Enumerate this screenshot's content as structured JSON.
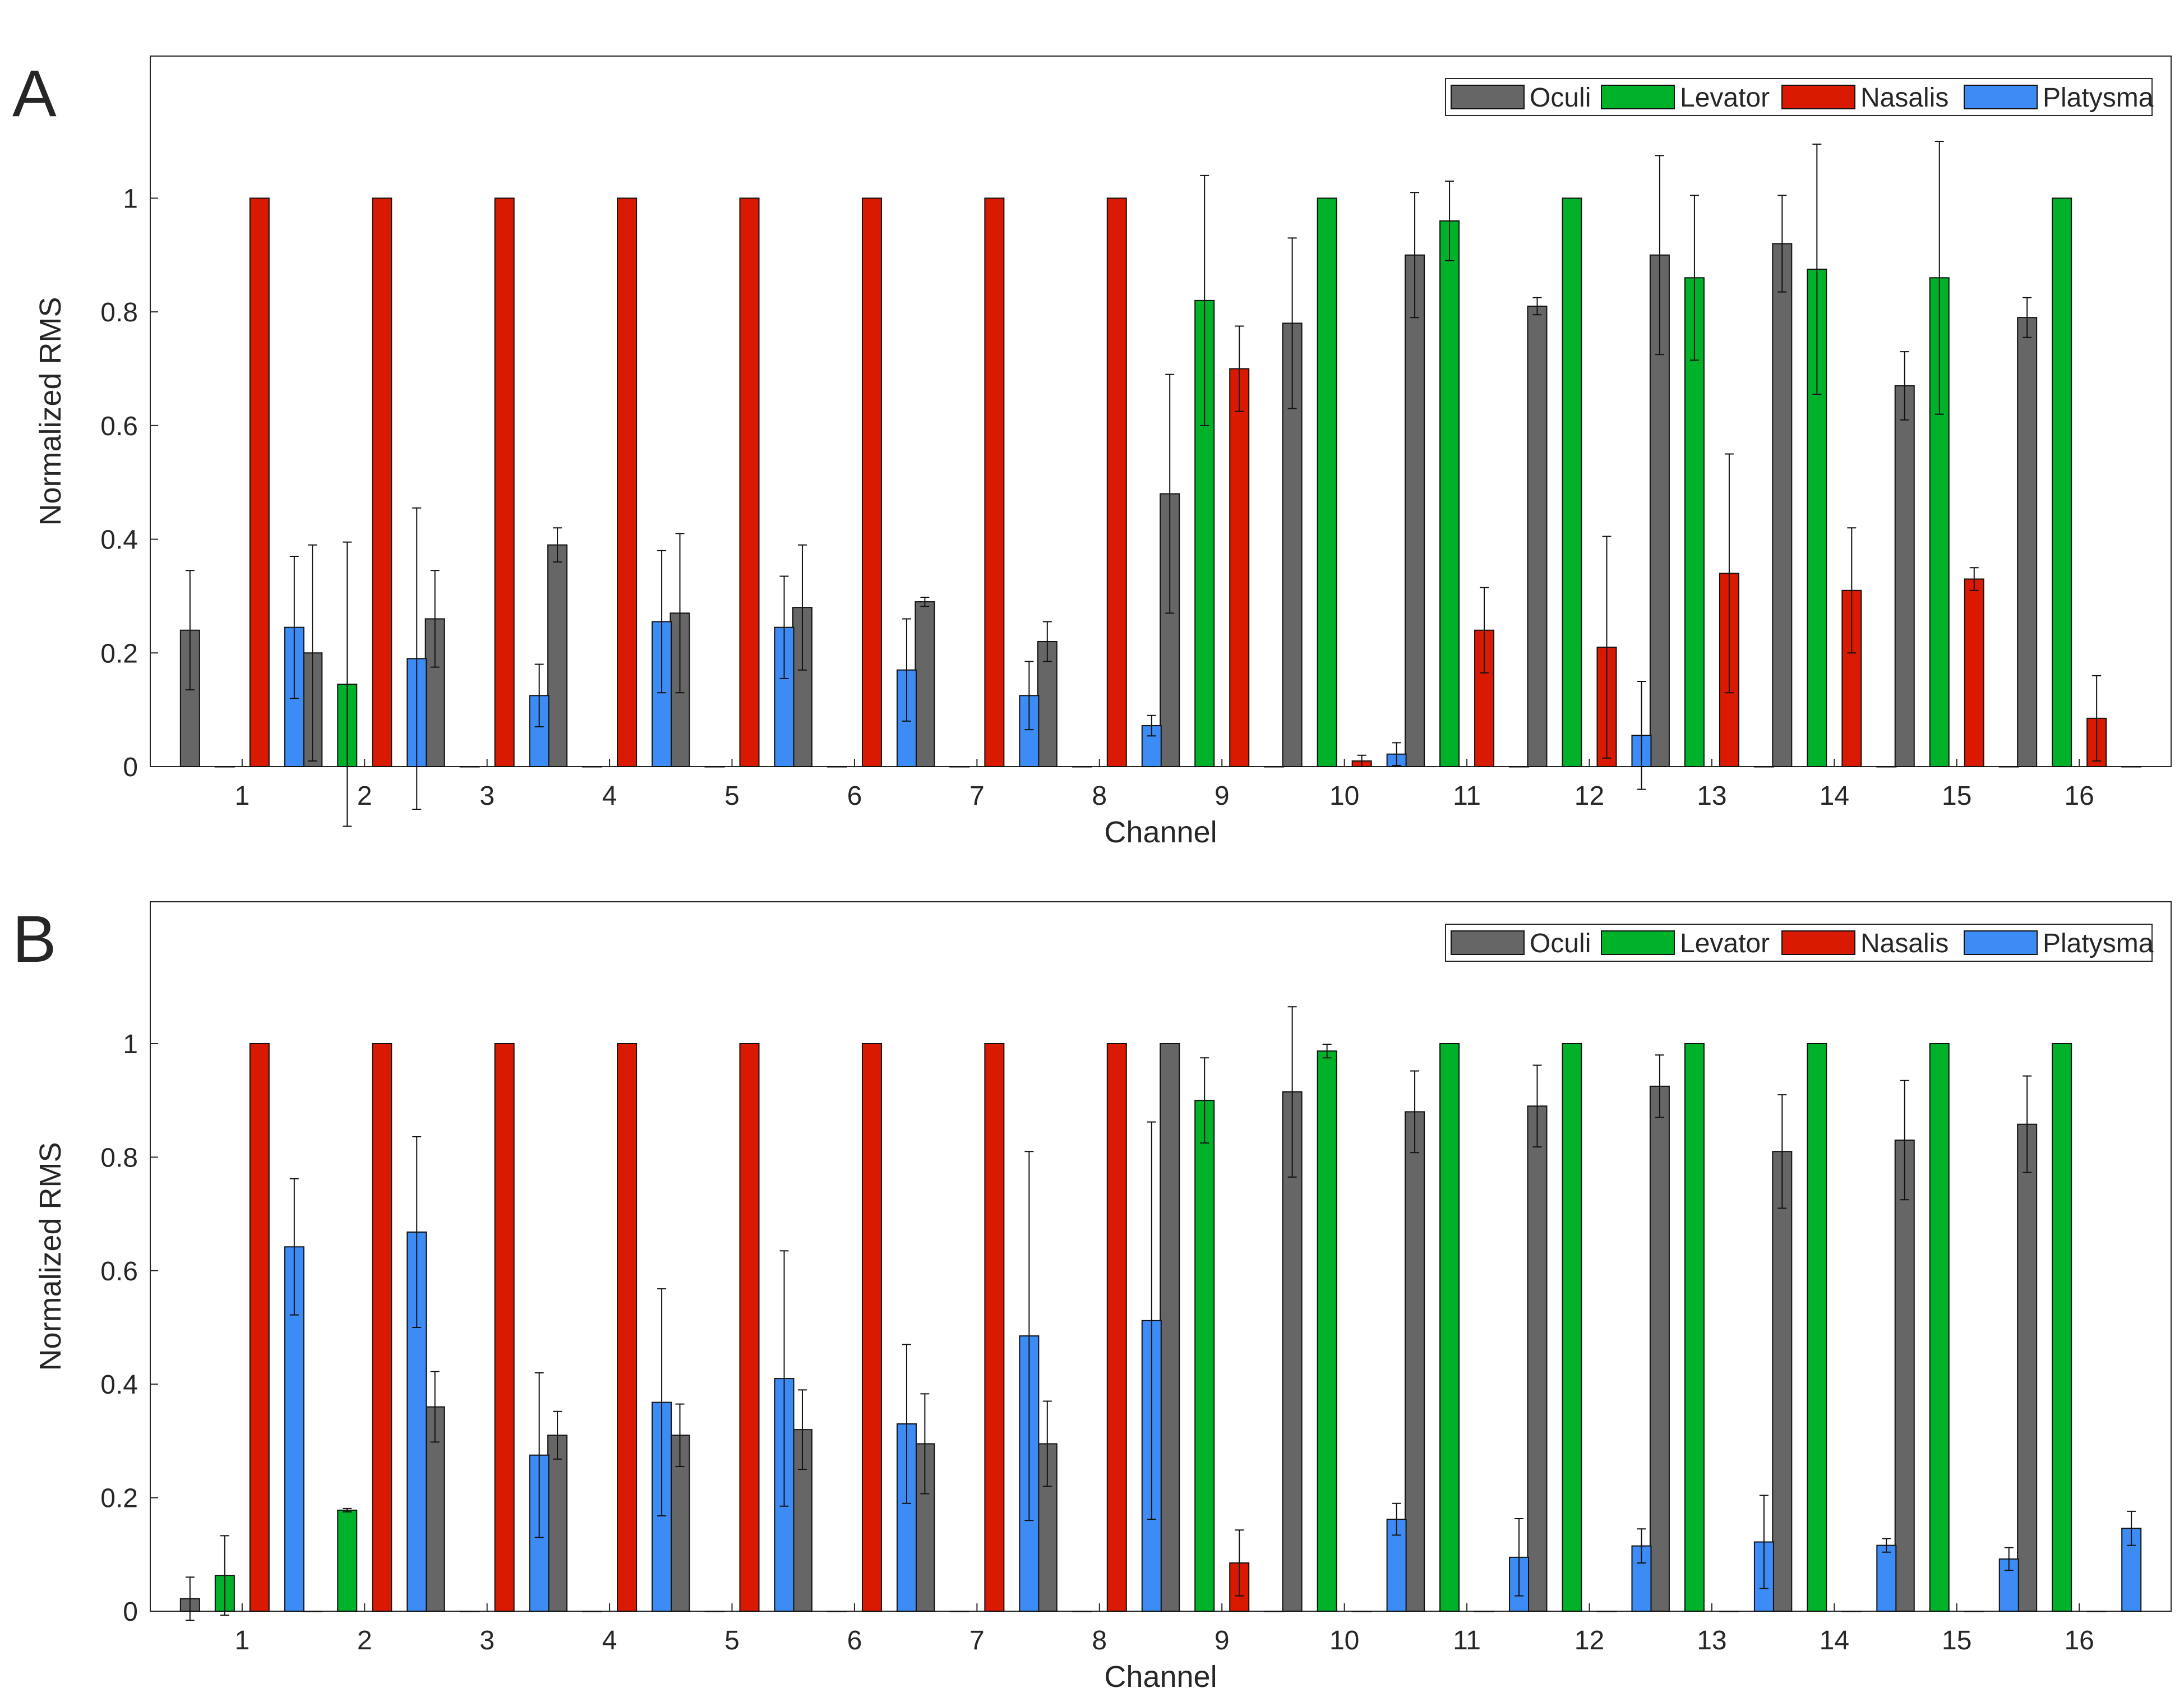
{
  "colors": {
    "Oculi": "#666666",
    "Levator": "#00b12a",
    "Nasalis": "#d91a00",
    "Platysma": "#3d8bf5"
  },
  "chart_data": [
    {
      "panel_label": "A",
      "type": "bar",
      "title": "",
      "xlabel": "Channel",
      "ylabel": "Normalized RMS",
      "ylim": [
        0,
        1.25
      ],
      "yticks": [
        "0",
        "0.2",
        "0.4",
        "0.6",
        "0.8",
        "1"
      ],
      "categories": [
        "1",
        "2",
        "3",
        "4",
        "5",
        "6",
        "7",
        "8",
        "9",
        "10",
        "11",
        "12",
        "13",
        "14",
        "15",
        "16"
      ],
      "legend_position": "top-right",
      "series": [
        {
          "name": "Oculi",
          "values": [
            0.24,
            0.2,
            0.26,
            0.39,
            0.27,
            0.28,
            0.29,
            0.22,
            0.48,
            0.78,
            0.9,
            0.81,
            0.9,
            0.92,
            0.67,
            0.79
          ],
          "errors": [
            0.105,
            0.19,
            0.085,
            0.03,
            0.14,
            0.11,
            0.008,
            0.035,
            0.21,
            0.15,
            0.11,
            0.015,
            0.175,
            0.085,
            0.06,
            0.035
          ]
        },
        {
          "name": "Levator",
          "values": [
            0,
            0.145,
            0,
            0,
            0,
            0,
            0,
            0,
            0.82,
            1,
            0.96,
            1,
            0.86,
            0.875,
            0.86,
            1
          ],
          "errors": [
            0,
            0.25,
            0,
            0,
            0,
            0,
            0,
            0,
            0.22,
            0,
            0.07,
            0,
            0.145,
            0.22,
            0.24,
            0
          ]
        },
        {
          "name": "Nasalis",
          "values": [
            1,
            1,
            1,
            1,
            1,
            1,
            1,
            1,
            0.7,
            0.01,
            0.24,
            0.21,
            0.34,
            0.31,
            0.33,
            0.085
          ],
          "errors": [
            0,
            0,
            0,
            0,
            0,
            0,
            0,
            0,
            0.075,
            0.01,
            0.075,
            0.195,
            0.21,
            0.11,
            0.02,
            0.075
          ]
        },
        {
          "name": "Platysma",
          "values": [
            0.245,
            0.19,
            0.125,
            0.255,
            0.245,
            0.17,
            0.125,
            0.072,
            0,
            0.022,
            0,
            0.055,
            0,
            0,
            0,
            0
          ],
          "errors": [
            0.125,
            0.265,
            0.055,
            0.125,
            0.09,
            0.09,
            0.06,
            0.018,
            0,
            0.02,
            0,
            0.095,
            0,
            0,
            0,
            0
          ]
        }
      ]
    },
    {
      "panel_label": "B",
      "type": "bar",
      "title": "",
      "xlabel": "Channel",
      "ylabel": "Normalized RMS",
      "ylim": [
        0,
        1.25
      ],
      "yticks": [
        "0",
        "0.2",
        "0.4",
        "0.6",
        "0.8",
        "1"
      ],
      "categories": [
        "1",
        "2",
        "3",
        "4",
        "5",
        "6",
        "7",
        "8",
        "9",
        "10",
        "11",
        "12",
        "13",
        "14",
        "15",
        "16"
      ],
      "legend_position": "top-right",
      "series": [
        {
          "name": "Oculi",
          "values": [
            0.022,
            0,
            0.36,
            0.31,
            0.31,
            0.32,
            0.295,
            0.295,
            1,
            0.915,
            0.88,
            0.89,
            0.925,
            0.81,
            0.83,
            0.858
          ],
          "errors": [
            0.038,
            0,
            0.062,
            0.042,
            0.055,
            0.07,
            0.088,
            0.075,
            0,
            0.15,
            0.072,
            0.072,
            0.055,
            0.1,
            0.105,
            0.085
          ]
        },
        {
          "name": "Levator",
          "values": [
            0.063,
            0.178,
            0,
            0,
            0,
            0,
            0,
            0,
            0.9,
            0.987,
            1,
            1,
            1,
            1,
            1,
            1
          ],
          "errors": [
            0.07,
            0.003,
            0,
            0,
            0,
            0,
            0,
            0,
            0.075,
            0.012,
            0,
            0,
            0,
            0,
            0,
            0
          ]
        },
        {
          "name": "Nasalis",
          "values": [
            1,
            1,
            1,
            1,
            1,
            1,
            1,
            1,
            0.085,
            0,
            0,
            0,
            0,
            0,
            0,
            0
          ],
          "errors": [
            0,
            0,
            0,
            0,
            0,
            0,
            0,
            0,
            0.058,
            0,
            0,
            0,
            0,
            0,
            0,
            0
          ]
        },
        {
          "name": "Platysma",
          "values": [
            0.642,
            0.668,
            0.275,
            0.368,
            0.41,
            0.33,
            0.485,
            0.512,
            0,
            0.162,
            0.095,
            0.115,
            0.122,
            0.116,
            0.092,
            0.146
          ],
          "errors": [
            0.12,
            0.168,
            0.145,
            0.2,
            0.225,
            0.14,
            0.325,
            0.35,
            0,
            0.028,
            0.068,
            0.03,
            0.082,
            0.012,
            0.02,
            0.03
          ]
        }
      ]
    }
  ]
}
